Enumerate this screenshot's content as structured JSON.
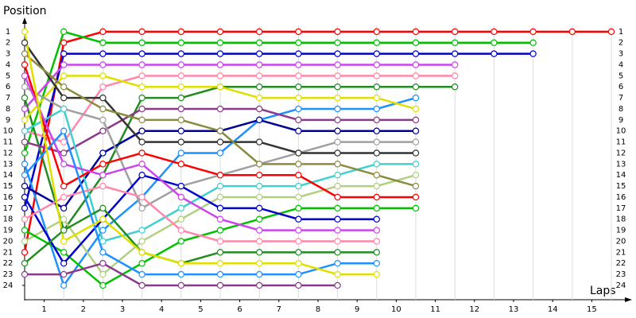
{
  "chart_data": {
    "type": "line",
    "y_label": "Position",
    "x_label": "Laps",
    "x": [
      0,
      1,
      2,
      3,
      4,
      5,
      6,
      7,
      8,
      9,
      10,
      11,
      12,
      13,
      14,
      15
    ],
    "xlim": [
      0,
      15.4
    ],
    "xticks": [
      {
        "value": 0.5,
        "label": "1"
      },
      {
        "value": 1.5,
        "label": "2"
      },
      {
        "value": 2.5,
        "label": "3"
      },
      {
        "value": 3.5,
        "label": "4"
      },
      {
        "value": 4.5,
        "label": "5"
      },
      {
        "value": 5.5,
        "label": "6"
      },
      {
        "value": 6.5,
        "label": "7"
      },
      {
        "value": 7.5,
        "label": "8"
      },
      {
        "value": 8.5,
        "label": "9"
      },
      {
        "value": 9.5,
        "label": "10"
      },
      {
        "value": 10.5,
        "label": "11"
      },
      {
        "value": 11.5,
        "label": "12"
      },
      {
        "value": 12.5,
        "label": "13"
      },
      {
        "value": 13.5,
        "label": "14"
      },
      {
        "value": 14.5,
        "label": "15"
      }
    ],
    "ylim": [
      0,
      25.3
    ],
    "yticks": [
      1,
      2,
      3,
      4,
      5,
      6,
      7,
      8,
      9,
      10,
      11,
      12,
      13,
      14,
      15,
      16,
      17,
      18,
      19,
      20,
      21,
      22,
      23,
      24
    ],
    "y_reversed": true,
    "grid": true,
    "series": [
      {
        "color": "#ff0000",
        "values": [
          21,
          2,
          1,
          1,
          1,
          1,
          1,
          1,
          1,
          1,
          1,
          1,
          1,
          1,
          1,
          1
        ]
      },
      {
        "color": "#00c000",
        "values": [
          12,
          1,
          2,
          2,
          2,
          2,
          2,
          2,
          2,
          2,
          2,
          2,
          2,
          2,
          null,
          null
        ]
      },
      {
        "color": "#0000cc",
        "values": [
          17,
          3,
          3,
          3,
          3,
          3,
          3,
          3,
          3,
          3,
          3,
          3,
          3,
          3,
          null,
          null
        ]
      },
      {
        "color": "#cc44ee",
        "values": [
          8,
          4,
          4,
          4,
          4,
          4,
          4,
          4,
          4,
          4,
          4,
          4,
          null,
          null,
          null,
          null
        ]
      },
      {
        "color": "#ff88aa",
        "values": [
          10,
          11,
          6,
          5,
          5,
          5,
          5,
          5,
          5,
          5,
          5,
          5,
          null,
          null,
          null,
          null
        ]
      },
      {
        "color": "#228b22",
        "values": [
          7,
          19,
          14,
          7,
          7,
          6,
          6,
          6,
          6,
          6,
          6,
          6,
          null,
          null,
          null,
          null
        ]
      },
      {
        "color": "#1e90ff",
        "values": [
          13,
          24,
          19,
          16,
          12,
          12,
          9,
          8,
          8,
          8,
          7,
          null,
          null,
          null,
          null,
          null
        ]
      },
      {
        "color": "#e0e000",
        "values": [
          9,
          5,
          5,
          6,
          6,
          6,
          7,
          7,
          7,
          7,
          8,
          null,
          null,
          null,
          null,
          null
        ]
      },
      {
        "color": "#8b3a8b",
        "values": [
          11,
          12,
          10,
          8,
          8,
          8,
          8,
          9,
          9,
          9,
          9,
          null,
          null,
          null,
          null,
          null
        ]
      },
      {
        "color": "#000099",
        "values": [
          15,
          17,
          12,
          10,
          10,
          10,
          9,
          10,
          10,
          10,
          10,
          null,
          null,
          null,
          null,
          null
        ]
      },
      {
        "color": "#a0a0a0",
        "values": [
          6,
          8,
          9,
          17,
          15,
          14,
          13,
          12,
          11,
          11,
          11,
          null,
          null,
          null,
          null,
          null
        ]
      },
      {
        "color": "#333333",
        "values": [
          2,
          7,
          7,
          11,
          11,
          11,
          11,
          12,
          12,
          12,
          12,
          null,
          null,
          null,
          null,
          null
        ]
      },
      {
        "color": "#40d0d0",
        "values": [
          10,
          8,
          20,
          19,
          17,
          15,
          15,
          15,
          14,
          13,
          13,
          null,
          null,
          null,
          null,
          null
        ]
      },
      {
        "color": "#b0d080",
        "values": [
          20,
          18,
          23,
          20,
          18,
          16,
          16,
          16,
          15,
          15,
          14,
          null,
          null,
          null,
          null,
          null
        ]
      },
      {
        "color": "#8b8b40",
        "values": [
          3,
          6,
          8,
          9,
          9,
          10,
          13,
          13,
          13,
          14,
          15,
          null,
          null,
          null,
          null,
          null
        ]
      },
      {
        "color": "#ff0000",
        "values": [
          4,
          15,
          13,
          12,
          13,
          14,
          14,
          14,
          16,
          16,
          16,
          null,
          null,
          null,
          null,
          null
        ]
      },
      {
        "color": "#00c000",
        "values": [
          19,
          21,
          24,
          22,
          20,
          19,
          18,
          17,
          17,
          17,
          17,
          null,
          null,
          null,
          null,
          null
        ]
      },
      {
        "color": "#0000cc",
        "values": [
          16,
          22,
          18,
          14,
          15,
          17,
          17,
          18,
          18,
          18,
          null,
          null,
          null,
          null,
          null,
          null
        ]
      },
      {
        "color": "#cc44ee",
        "values": [
          5,
          13,
          14,
          13,
          16,
          18,
          19,
          19,
          19,
          19,
          null,
          null,
          null,
          null,
          null,
          null
        ]
      },
      {
        "color": "#ff88aa",
        "values": [
          18,
          16,
          15,
          16,
          19,
          20,
          20,
          20,
          20,
          20,
          null,
          null,
          null,
          null,
          null,
          null
        ]
      },
      {
        "color": "#228b22",
        "values": [
          22,
          19,
          17,
          21,
          22,
          21,
          21,
          21,
          21,
          21,
          null,
          null,
          null,
          null,
          null,
          null
        ]
      },
      {
        "color": "#1e90ff",
        "values": [
          14,
          10,
          21,
          23,
          23,
          23,
          23,
          23,
          22,
          22,
          null,
          null,
          null,
          null,
          null,
          null
        ]
      },
      {
        "color": "#e0e000",
        "values": [
          1,
          20,
          18,
          21,
          22,
          22,
          22,
          22,
          23,
          23,
          null,
          null,
          null,
          null,
          null,
          null
        ]
      },
      {
        "color": "#8b3a8b",
        "values": [
          23,
          23,
          22,
          24,
          24,
          24,
          24,
          24,
          24,
          null,
          null,
          null,
          null,
          null,
          null,
          null
        ]
      }
    ]
  }
}
